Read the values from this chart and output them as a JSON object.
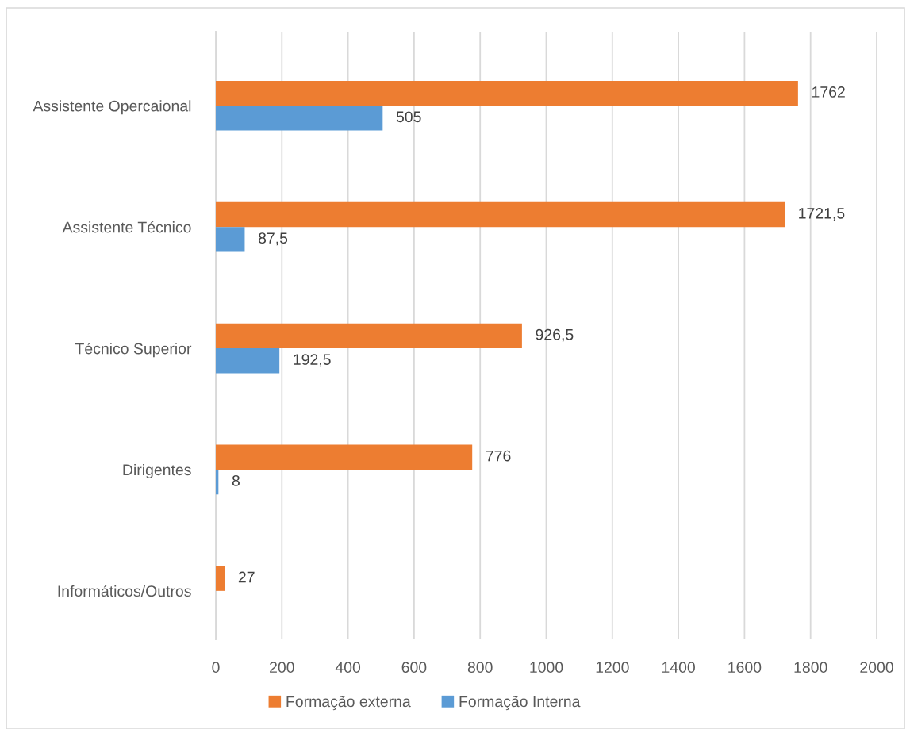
{
  "chart_data": {
    "type": "bar",
    "orientation": "horizontal",
    "categories": [
      "Assistente Opercaional",
      "Assistente Técnico",
      "Técnico Superior",
      "Dirigentes",
      "Informáticos/Outros"
    ],
    "series": [
      {
        "name": "Formação externa",
        "color": "#ed7d31",
        "values": [
          1762,
          1721.5,
          926.5,
          776,
          27
        ],
        "value_labels": [
          "1762",
          "1721,5",
          "926,5",
          "776",
          "27"
        ]
      },
      {
        "name": "Formação Interna",
        "color": "#5b9bd5",
        "values": [
          505,
          87.5,
          192.5,
          8,
          null
        ],
        "value_labels": [
          "505",
          "87,5",
          "192,5",
          "8",
          null
        ]
      }
    ],
    "xlim": [
      0,
      2000
    ],
    "xticks": [
      0,
      200,
      400,
      600,
      800,
      1000,
      1200,
      1400,
      1600,
      1800,
      2000
    ],
    "grid": "x",
    "legend": "bottom"
  }
}
